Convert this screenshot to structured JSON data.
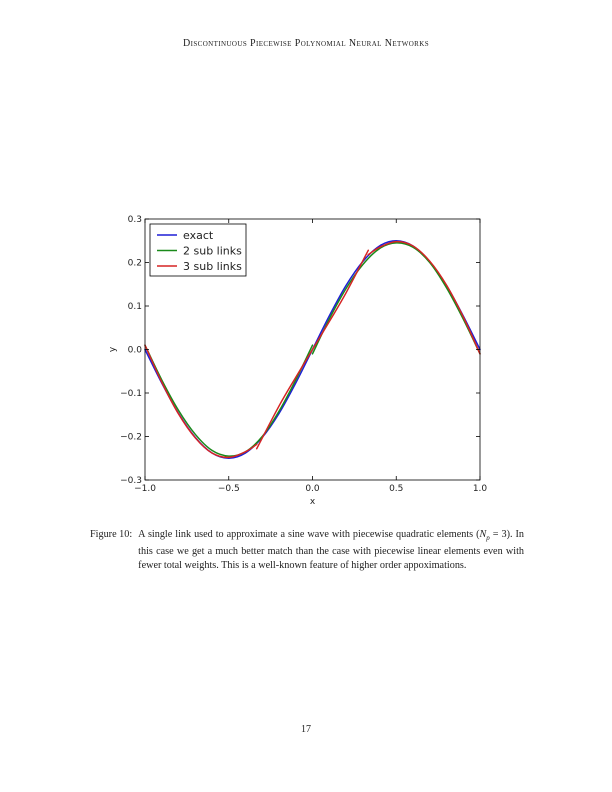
{
  "header": {
    "running_title": "Discontinuous Piecewise Polynomial Neural Networks"
  },
  "caption": {
    "label": "Figure 10:",
    "text_part1": "A single link used to approximate a sine wave with piecewise quadratic elements (",
    "math": "N",
    "math_sub": "p",
    "math_rest": " = 3)",
    "text_part2": ". In this case we get a much better match than the case with piecewise linear elements even with fewer total weights. This is a well-known feature of higher order appoximations."
  },
  "page": {
    "number": "17"
  },
  "chart_data": {
    "type": "line",
    "xlabel": "x",
    "ylabel": "y",
    "xlim": [
      -1.0,
      1.0
    ],
    "ylim": [
      -0.3,
      0.3
    ],
    "x_ticks": [
      -1.0,
      -0.5,
      0.0,
      0.5,
      1.0
    ],
    "x_tick_labels": [
      "−1.0",
      "−0.5",
      "0.0",
      "0.5",
      "1.0"
    ],
    "y_ticks": [
      -0.3,
      -0.2,
      -0.1,
      0.0,
      0.1,
      0.2,
      0.3
    ],
    "y_tick_labels": [
      "−0.3",
      "−0.2",
      "−0.1",
      "0.0",
      "0.1",
      "0.2",
      "0.3"
    ],
    "grid": false,
    "legend_position": "top-left",
    "series": [
      {
        "name": "exact",
        "color": "#1f1fd6",
        "points": [
          [
            -1.0,
            0.0
          ],
          [
            -0.9,
            -0.077
          ],
          [
            -0.8,
            -0.147
          ],
          [
            -0.7,
            -0.202
          ],
          [
            -0.6,
            -0.238
          ],
          [
            -0.5,
            -0.25
          ],
          [
            -0.4,
            -0.238
          ],
          [
            -0.3,
            -0.202
          ],
          [
            -0.2,
            -0.147
          ],
          [
            -0.1,
            -0.077
          ],
          [
            0.0,
            0.0
          ],
          [
            0.1,
            0.077
          ],
          [
            0.2,
            0.147
          ],
          [
            0.3,
            0.202
          ],
          [
            0.4,
            0.238
          ],
          [
            0.5,
            0.25
          ],
          [
            0.6,
            0.238
          ],
          [
            0.7,
            0.202
          ],
          [
            0.8,
            0.147
          ],
          [
            0.9,
            0.077
          ],
          [
            1.0,
            0.0
          ]
        ]
      },
      {
        "name": "2 sub links",
        "color": "#1a8a1a",
        "segments": [
          [
            [
              -1.0,
              0.01
            ],
            [
              -0.9,
              -0.07
            ],
            [
              -0.8,
              -0.14
            ],
            [
              -0.7,
              -0.195
            ],
            [
              -0.6,
              -0.232
            ],
            [
              -0.5,
              -0.245
            ],
            [
              -0.4,
              -0.235
            ],
            [
              -0.3,
              -0.2
            ],
            [
              -0.2,
              -0.142
            ],
            [
              -0.1,
              -0.07
            ],
            [
              0.0,
              0.01
            ]
          ],
          [
            [
              0.0,
              -0.01
            ],
            [
              0.1,
              0.07
            ],
            [
              0.2,
              0.14
            ],
            [
              0.3,
              0.195
            ],
            [
              0.4,
              0.232
            ],
            [
              0.5,
              0.245
            ],
            [
              0.6,
              0.235
            ],
            [
              0.7,
              0.2
            ],
            [
              0.8,
              0.142
            ],
            [
              0.9,
              0.07
            ],
            [
              1.0,
              -0.01
            ]
          ]
        ]
      },
      {
        "name": "3 sub links",
        "color": "#d62424",
        "segments": [
          [
            [
              -1.0,
              0.01
            ],
            [
              -0.9,
              -0.075
            ],
            [
              -0.8,
              -0.148
            ],
            [
              -0.7,
              -0.203
            ],
            [
              -0.6,
              -0.238
            ],
            [
              -0.5,
              -0.248
            ],
            [
              -0.4,
              -0.235
            ],
            [
              -0.333,
              -0.218
            ]
          ],
          [
            [
              -0.333,
              -0.228
            ],
            [
              -0.2,
              -0.13
            ],
            [
              -0.1,
              -0.064
            ],
            [
              0.0,
              0.0
            ],
            [
              0.1,
              0.064
            ],
            [
              0.2,
              0.13
            ],
            [
              0.333,
              0.228
            ]
          ],
          [
            [
              0.333,
              0.218
            ],
            [
              0.4,
              0.235
            ],
            [
              0.5,
              0.248
            ],
            [
              0.6,
              0.238
            ],
            [
              0.7,
              0.203
            ],
            [
              0.8,
              0.148
            ],
            [
              0.9,
              0.075
            ],
            [
              1.0,
              -0.01
            ]
          ]
        ]
      }
    ]
  }
}
